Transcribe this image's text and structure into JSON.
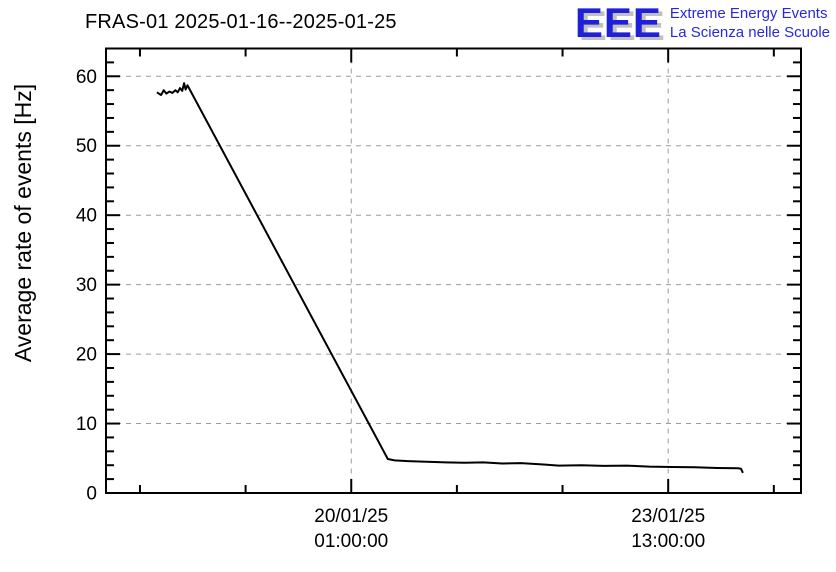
{
  "title": "FRAS-01 2025-01-16--2025-01-25",
  "logo": {
    "acronym": "EEE",
    "line1": "Extreme Energy Events",
    "line2": "La Scienza nelle Scuole",
    "accent_color": "#2020d8",
    "shadow_color": "#c0c0c0"
  },
  "chart_data": {
    "type": "line",
    "title": "FRAS-01 2025-01-16--2025-01-25",
    "xlabel": "",
    "ylabel": "Average rate of events [Hz]",
    "ylim": [
      0,
      64
    ],
    "y_major_ticks": [
      0,
      10,
      20,
      30,
      40,
      50,
      60
    ],
    "y_minor_step": 2,
    "x_unit": "hours since 2025-01-17 00:00",
    "xlim": [
      8,
      192.2
    ],
    "x_major_ticks": [
      {
        "t": 73,
        "label_line1": "20/01/25",
        "label_line2": "01:00:00"
      },
      {
        "t": 157,
        "label_line1": "23/01/25",
        "label_line2": "13:00:00"
      }
    ],
    "x_minor_ticks": [
      17,
      45,
      101,
      129,
      185
    ],
    "grid": "dashed gray lines at every major tick, both axes",
    "legend_position": "none",
    "line_color": "#000000",
    "grid_color": "#9c9c9c",
    "series": [
      {
        "name": "average-rate-of-events",
        "points_t_hz": [
          [
            21.5,
            57.7
          ],
          [
            22.0,
            57.5
          ],
          [
            22.6,
            57.3
          ],
          [
            23.3,
            58.0
          ],
          [
            24.0,
            57.5
          ],
          [
            24.8,
            57.8
          ],
          [
            25.6,
            57.6
          ],
          [
            26.4,
            58.0
          ],
          [
            27.0,
            57.7
          ],
          [
            27.6,
            58.3
          ],
          [
            28.2,
            57.9
          ],
          [
            28.7,
            59.0
          ],
          [
            29.1,
            58.1
          ],
          [
            29.6,
            58.7
          ],
          [
            30.0,
            58.3
          ],
          [
            82.7,
            4.9
          ],
          [
            84.5,
            4.7
          ],
          [
            88,
            4.6
          ],
          [
            93,
            4.5
          ],
          [
            98,
            4.4
          ],
          [
            103,
            4.35
          ],
          [
            108,
            4.4
          ],
          [
            113,
            4.25
          ],
          [
            118,
            4.3
          ],
          [
            124,
            4.1
          ],
          [
            128,
            3.95
          ],
          [
            134,
            4.0
          ],
          [
            140,
            3.9
          ],
          [
            146,
            3.95
          ],
          [
            152,
            3.8
          ],
          [
            158,
            3.75
          ],
          [
            164,
            3.7
          ],
          [
            170,
            3.6
          ],
          [
            175.5,
            3.55
          ],
          [
            176.3,
            3.5
          ],
          [
            176.8,
            2.9
          ]
        ]
      }
    ]
  }
}
